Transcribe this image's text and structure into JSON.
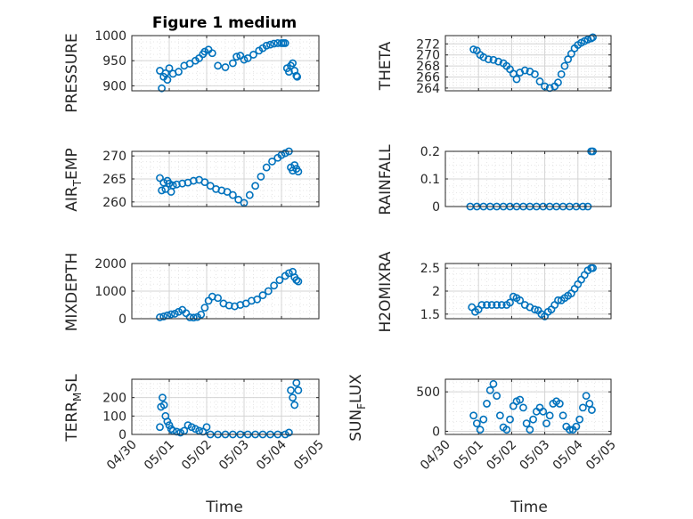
{
  "figure_title": "Figure 1 medium",
  "colors": {
    "marker": "#0072BD",
    "axis": "#262626",
    "background": "#ffffff"
  },
  "chart_data": [
    {
      "type": "scatter",
      "title": "Figure 1 medium",
      "ylabel": "PRESSURE",
      "ylim": [
        890,
        1000
      ],
      "yticks": [
        900,
        950,
        1000
      ],
      "ytick_labels": [
        "900",
        "950",
        "1000"
      ],
      "x": [
        0.75,
        0.8,
        0.85,
        0.9,
        0.95,
        1.0,
        1.1,
        1.25,
        1.4,
        1.55,
        1.7,
        1.8,
        1.9,
        1.95,
        2.05,
        2.15,
        2.3,
        2.5,
        2.7,
        2.8,
        2.9,
        3.0,
        3.1,
        3.25,
        3.4,
        3.5,
        3.6,
        3.7,
        3.8,
        3.9,
        4.0,
        4.05,
        4.1,
        4.15,
        4.2,
        4.25,
        4.3,
        4.35,
        4.4,
        4.42
      ],
      "y": [
        930,
        895,
        918,
        925,
        912,
        935,
        924,
        928,
        940,
        944,
        950,
        955,
        963,
        968,
        972,
        965,
        940,
        937,
        945,
        958,
        960,
        952,
        955,
        962,
        970,
        975,
        980,
        982,
        984,
        985,
        985,
        985,
        985,
        935,
        928,
        940,
        945,
        930,
        920,
        918
      ]
    },
    {
      "type": "scatter",
      "title": "",
      "ylabel": "THETA",
      "ylim": [
        263.5,
        273.5
      ],
      "yticks": [
        264,
        266,
        268,
        270,
        272
      ],
      "ytick_labels": [
        "264",
        "266",
        "268",
        "270",
        "272"
      ],
      "x": [
        0.85,
        0.95,
        1.05,
        1.15,
        1.3,
        1.45,
        1.6,
        1.75,
        1.85,
        1.95,
        2.05,
        2.15,
        2.25,
        2.4,
        2.55,
        2.7,
        2.85,
        3.0,
        3.15,
        3.3,
        3.4,
        3.5,
        3.6,
        3.7,
        3.8,
        3.9,
        4.0,
        4.1,
        4.2,
        4.3,
        4.4,
        4.45
      ],
      "y": [
        271.0,
        270.8,
        270.0,
        269.6,
        269.2,
        269.1,
        268.8,
        268.5,
        268.0,
        267.4,
        266.6,
        265.6,
        266.8,
        267.2,
        267.0,
        266.5,
        265.2,
        264.3,
        264.0,
        264.3,
        265.0,
        266.5,
        268.0,
        269.2,
        270.2,
        271.2,
        271.8,
        272.2,
        272.5,
        272.8,
        273.0,
        273.2
      ]
    },
    {
      "type": "scatter",
      "title": "",
      "ylabel": "AIR_TEMP",
      "ylim": [
        259,
        271
      ],
      "yticks": [
        260,
        265,
        270
      ],
      "ytick_labels": [
        "260",
        "265",
        "270"
      ],
      "x": [
        0.75,
        0.8,
        0.85,
        0.9,
        0.95,
        1.0,
        1.05,
        1.1,
        1.2,
        1.35,
        1.5,
        1.65,
        1.8,
        1.95,
        2.1,
        2.25,
        2.4,
        2.55,
        2.7,
        2.85,
        3.0,
        3.15,
        3.3,
        3.45,
        3.6,
        3.75,
        3.9,
        4.0,
        4.1,
        4.2,
        4.25,
        4.3,
        4.35,
        4.4,
        4.45
      ],
      "y": [
        265.2,
        262.5,
        264.2,
        262.8,
        264.6,
        264.0,
        262.2,
        263.6,
        263.8,
        264.0,
        264.2,
        264.6,
        264.8,
        264.3,
        263.5,
        262.8,
        262.5,
        262.2,
        261.5,
        260.5,
        259.8,
        261.5,
        263.5,
        265.5,
        267.5,
        268.8,
        269.6,
        270.2,
        270.6,
        271.0,
        267.5,
        266.8,
        268.0,
        267.2,
        266.6
      ]
    },
    {
      "type": "scatter",
      "title": "",
      "ylabel": "RAINFALL",
      "ylim": [
        0,
        0.2
      ],
      "yticks": [
        0,
        0.1,
        0.2
      ],
      "ytick_labels": [
        "0",
        "0.1",
        "0.2"
      ],
      "x": [
        0.75,
        0.95,
        1.15,
        1.35,
        1.55,
        1.75,
        1.95,
        2.15,
        2.35,
        2.55,
        2.75,
        2.95,
        3.15,
        3.35,
        3.55,
        3.75,
        3.95,
        4.15,
        4.3,
        4.4,
        4.45
      ],
      "y": [
        0,
        0,
        0,
        0,
        0,
        0,
        0,
        0,
        0,
        0,
        0,
        0,
        0,
        0,
        0,
        0,
        0,
        0,
        0,
        0.2,
        0.2
      ]
    },
    {
      "type": "scatter",
      "title": "",
      "ylabel": "MIXDEPTH",
      "ylim": [
        0,
        2000
      ],
      "yticks": [
        0,
        1000,
        2000
      ],
      "ytick_labels": [
        "0",
        "1000",
        "2000"
      ],
      "x": [
        0.75,
        0.85,
        0.95,
        1.05,
        1.15,
        1.25,
        1.35,
        1.45,
        1.55,
        1.65,
        1.75,
        1.85,
        1.95,
        2.05,
        2.15,
        2.3,
        2.45,
        2.6,
        2.75,
        2.9,
        3.05,
        3.2,
        3.35,
        3.5,
        3.65,
        3.8,
        3.95,
        4.1,
        4.2,
        4.3,
        4.35,
        4.4,
        4.45
      ],
      "y": [
        50,
        80,
        120,
        160,
        180,
        250,
        320,
        200,
        50,
        40,
        60,
        150,
        400,
        650,
        800,
        750,
        550,
        480,
        450,
        500,
        550,
        650,
        700,
        850,
        1000,
        1200,
        1400,
        1550,
        1650,
        1700,
        1500,
        1400,
        1350
      ]
    },
    {
      "type": "scatter",
      "title": "",
      "ylabel": "H2OMIXRA",
      "ylim": [
        1.4,
        2.6
      ],
      "yticks": [
        1.5,
        2,
        2.5
      ],
      "ytick_labels": [
        "1.5",
        "2",
        "2.5"
      ],
      "x": [
        0.8,
        0.9,
        1.0,
        1.1,
        1.25,
        1.4,
        1.55,
        1.7,
        1.85,
        1.95,
        2.05,
        2.15,
        2.25,
        2.4,
        2.55,
        2.7,
        2.8,
        2.9,
        3.0,
        3.1,
        3.2,
        3.3,
        3.4,
        3.5,
        3.6,
        3.7,
        3.8,
        3.9,
        4.0,
        4.1,
        4.2,
        4.3,
        4.4,
        4.45
      ],
      "y": [
        1.65,
        1.55,
        1.6,
        1.7,
        1.7,
        1.7,
        1.7,
        1.7,
        1.7,
        1.75,
        1.88,
        1.85,
        1.8,
        1.7,
        1.65,
        1.6,
        1.58,
        1.5,
        1.45,
        1.55,
        1.6,
        1.7,
        1.8,
        1.8,
        1.85,
        1.9,
        1.95,
        2.05,
        2.15,
        2.25,
        2.35,
        2.45,
        2.5,
        2.5
      ]
    },
    {
      "type": "scatter",
      "title": "",
      "ylabel": "TERR_MSL",
      "ylim": [
        0,
        300
      ],
      "yticks": [
        0,
        100,
        200
      ],
      "ytick_labels": [
        "0",
        "100",
        "200"
      ],
      "x": [
        0.75,
        0.78,
        0.82,
        0.86,
        0.9,
        0.95,
        1.0,
        1.05,
        1.1,
        1.2,
        1.3,
        1.4,
        1.5,
        1.6,
        1.7,
        1.8,
        1.9,
        2.0,
        2.1,
        2.3,
        2.5,
        2.7,
        2.9,
        3.1,
        3.3,
        3.5,
        3.7,
        3.9,
        4.1,
        4.2,
        4.25,
        4.3,
        4.35,
        4.4,
        4.45
      ],
      "y": [
        40,
        150,
        200,
        160,
        100,
        70,
        50,
        30,
        20,
        15,
        10,
        20,
        50,
        40,
        30,
        20,
        15,
        40,
        0,
        0,
        0,
        0,
        0,
        0,
        0,
        0,
        0,
        0,
        0,
        10,
        240,
        200,
        160,
        280,
        240
      ]
    },
    {
      "type": "scatter",
      "title": "",
      "ylabel": "SUN_FLUX",
      "ylim": [
        -40,
        660
      ],
      "yticks": [
        0,
        500
      ],
      "ytick_labels": [
        "0",
        "500"
      ],
      "x": [
        0.85,
        0.95,
        1.05,
        1.15,
        1.25,
        1.35,
        1.45,
        1.55,
        1.65,
        1.75,
        1.85,
        1.95,
        2.05,
        2.15,
        2.25,
        2.35,
        2.45,
        2.55,
        2.65,
        2.75,
        2.85,
        2.95,
        3.05,
        3.15,
        3.25,
        3.35,
        3.45,
        3.55,
        3.65,
        3.75,
        3.85,
        3.95,
        4.05,
        4.15,
        4.25,
        4.35,
        4.42
      ],
      "y": [
        200,
        100,
        20,
        150,
        350,
        520,
        600,
        450,
        200,
        50,
        20,
        150,
        320,
        380,
        400,
        300,
        100,
        20,
        150,
        250,
        300,
        250,
        100,
        200,
        350,
        380,
        350,
        200,
        60,
        20,
        20,
        60,
        150,
        300,
        450,
        350,
        270
      ]
    }
  ],
  "x_axis": {
    "xlim": [
      0,
      5
    ],
    "ticks": [
      0,
      1,
      2,
      3,
      4,
      5
    ],
    "tick_labels": [
      "04/30",
      "05/01",
      "05/02",
      "05/03",
      "05/04",
      "05/05"
    ],
    "label_left": "Time",
    "label_right": "Time"
  },
  "ylabels_display": {
    "pressure": {
      "main": "PRESSURE",
      "sub": "",
      "tail": ""
    },
    "theta": {
      "main": "THETA",
      "sub": "",
      "tail": ""
    },
    "airtemp": {
      "main": "AIR",
      "sub": "T",
      "tail": "EMP"
    },
    "rainfall": {
      "main": "RAINFALL",
      "sub": "",
      "tail": ""
    },
    "mixdepth": {
      "main": "MIXDEPTH",
      "sub": "",
      "tail": ""
    },
    "h2omixra": {
      "main": "H2OMIXRA",
      "sub": "",
      "tail": ""
    },
    "terrmsl": {
      "main": "TERR",
      "sub": "M",
      "tail": "SL"
    },
    "sunflux": {
      "main": "SUN",
      "sub": "F",
      "tail": "LUX"
    }
  }
}
